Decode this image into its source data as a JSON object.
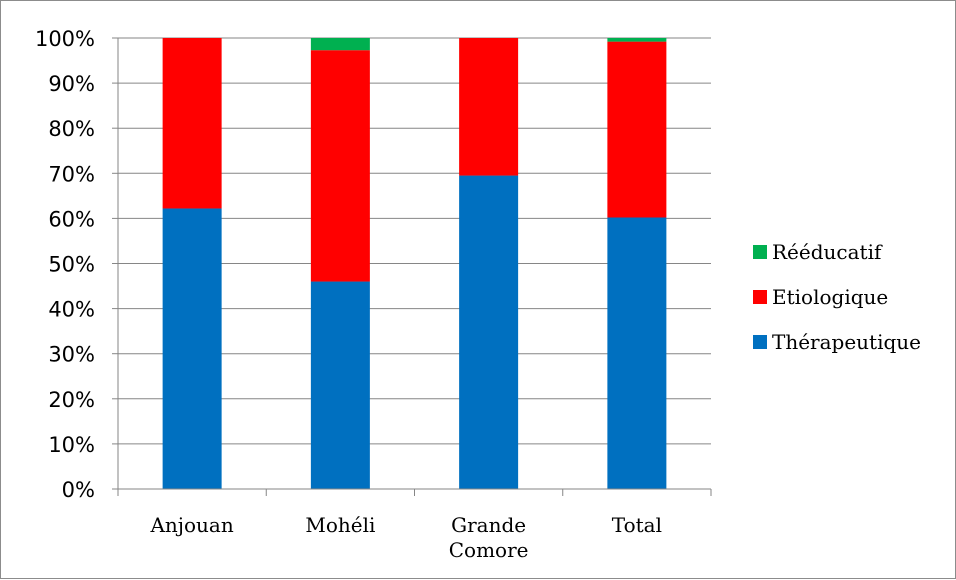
{
  "chart_data": {
    "type": "bar",
    "stacked": true,
    "percent": true,
    "categories": [
      [
        "Anjouan"
      ],
      [
        "Mohéli"
      ],
      [
        "Grande",
        "Comore"
      ],
      [
        "Total"
      ]
    ],
    "series": [
      {
        "name": "Thérapeutique",
        "color": "#0070c0",
        "values": [
          62.2,
          46.0,
          69.5,
          60.2
        ]
      },
      {
        "name": "Etiologique",
        "color": "#ff0000",
        "values": [
          37.8,
          51.3,
          30.5,
          39.0
        ]
      },
      {
        "name": "Rééducatif",
        "color": "#00b050",
        "values": [
          0.0,
          2.7,
          0.0,
          0.8
        ]
      }
    ],
    "yticks": [
      "0%",
      "10%",
      "20%",
      "30%",
      "40%",
      "50%",
      "60%",
      "70%",
      "80%",
      "90%",
      "100%"
    ],
    "ylim": [
      0,
      100
    ],
    "grid": true,
    "legend": {
      "position": "right",
      "order": [
        "Rééducatif",
        "Etiologique",
        "Thérapeutique"
      ]
    }
  }
}
